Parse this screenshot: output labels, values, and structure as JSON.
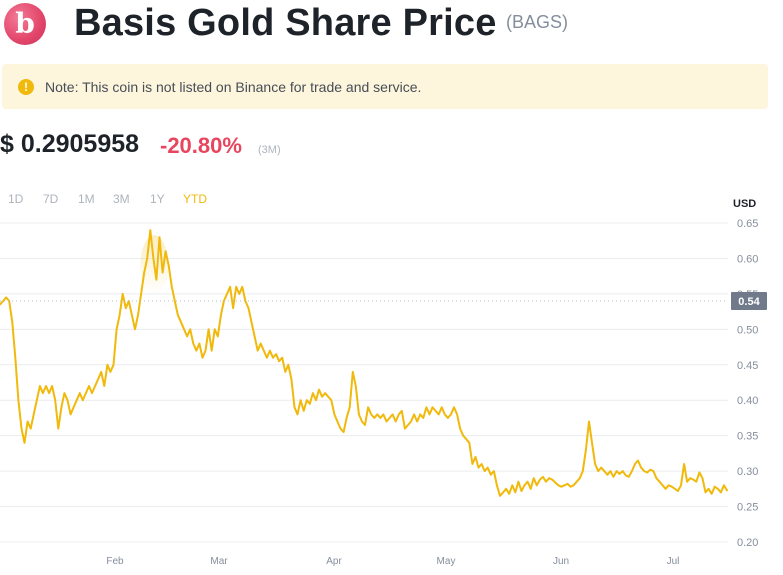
{
  "header": {
    "logo_letter": "b",
    "title": "Basis Gold Share Price",
    "symbol": "(BAGS)"
  },
  "notice": {
    "icon": "exclamation-circle-icon",
    "text": "Note: This coin is not listed on Binance for trade and service."
  },
  "price": {
    "value": "$ 0.2905958",
    "change": "-20.80%",
    "period": "(3M)"
  },
  "ranges": [
    "1D",
    "7D",
    "1M",
    "3M",
    "1Y",
    "YTD"
  ],
  "active_range": "YTD",
  "colors": {
    "line": "#f0b90b",
    "change_negative": "#e8455f",
    "notice_bg": "#fdf6dc",
    "current_badge": "#707a8a"
  },
  "chart_data": {
    "type": "line",
    "ylabel": "USD",
    "ylim": [
      0.2,
      0.65
    ],
    "yticks": [
      0.65,
      0.6,
      0.55,
      0.5,
      0.45,
      0.4,
      0.35,
      0.3,
      0.25,
      0.2
    ],
    "xticks": [
      "Feb",
      "Mar",
      "Apr",
      "May",
      "Jun",
      "Jul"
    ],
    "current_price_label": "0.54",
    "current_price_value": 0.54,
    "grid": true,
    "series": [
      {
        "values": [
          0.535,
          0.54,
          0.545,
          0.54,
          0.51,
          0.46,
          0.4,
          0.36,
          0.34,
          0.37,
          0.36,
          0.38,
          0.4,
          0.42,
          0.41,
          0.42,
          0.41,
          0.42,
          0.4,
          0.36,
          0.39,
          0.41,
          0.4,
          0.38,
          0.39,
          0.4,
          0.41,
          0.4,
          0.41,
          0.42,
          0.41,
          0.42,
          0.43,
          0.44,
          0.42,
          0.45,
          0.44,
          0.45,
          0.5,
          0.52,
          0.55,
          0.53,
          0.54,
          0.52,
          0.5,
          0.52,
          0.55,
          0.58,
          0.6,
          0.64,
          0.6,
          0.57,
          0.63,
          0.58,
          0.61,
          0.59,
          0.56,
          0.54,
          0.52,
          0.51,
          0.5,
          0.49,
          0.5,
          0.48,
          0.47,
          0.48,
          0.46,
          0.47,
          0.5,
          0.47,
          0.5,
          0.49,
          0.52,
          0.54,
          0.55,
          0.56,
          0.53,
          0.56,
          0.55,
          0.56,
          0.54,
          0.53,
          0.51,
          0.49,
          0.47,
          0.48,
          0.47,
          0.46,
          0.47,
          0.46,
          0.465,
          0.455,
          0.46,
          0.44,
          0.45,
          0.43,
          0.39,
          0.38,
          0.4,
          0.385,
          0.4,
          0.395,
          0.41,
          0.4,
          0.415,
          0.405,
          0.41,
          0.405,
          0.4,
          0.38,
          0.37,
          0.36,
          0.355,
          0.375,
          0.39,
          0.44,
          0.42,
          0.38,
          0.37,
          0.365,
          0.39,
          0.38,
          0.375,
          0.38,
          0.375,
          0.38,
          0.37,
          0.375,
          0.38,
          0.37,
          0.38,
          0.385,
          0.36,
          0.365,
          0.37,
          0.38,
          0.37,
          0.38,
          0.375,
          0.39,
          0.38,
          0.39,
          0.385,
          0.38,
          0.39,
          0.38,
          0.375,
          0.38,
          0.39,
          0.38,
          0.36,
          0.35,
          0.345,
          0.34,
          0.31,
          0.32,
          0.305,
          0.31,
          0.3,
          0.305,
          0.295,
          0.3,
          0.28,
          0.265,
          0.27,
          0.275,
          0.268,
          0.28,
          0.27,
          0.285,
          0.272,
          0.28,
          0.285,
          0.275,
          0.29,
          0.28,
          0.288,
          0.292,
          0.285,
          0.29,
          0.288,
          0.284,
          0.28,
          0.278,
          0.28,
          0.282,
          0.278,
          0.28,
          0.285,
          0.29,
          0.3,
          0.33,
          0.37,
          0.34,
          0.31,
          0.3,
          0.305,
          0.3,
          0.295,
          0.3,
          0.292,
          0.3,
          0.296,
          0.3,
          0.294,
          0.292,
          0.3,
          0.31,
          0.315,
          0.305,
          0.3,
          0.298,
          0.302,
          0.3,
          0.29,
          0.285,
          0.28,
          0.275,
          0.28,
          0.278,
          0.275,
          0.272,
          0.28,
          0.31,
          0.285,
          0.29,
          0.288,
          0.285,
          0.298,
          0.29,
          0.27,
          0.275,
          0.268,
          0.278,
          0.275,
          0.27,
          0.28,
          0.273
        ]
      }
    ]
  }
}
